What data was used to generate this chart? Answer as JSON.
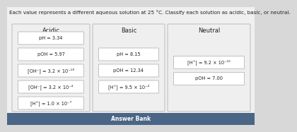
{
  "title": "Each value represents a different aqueous solution at 25 °C. Classify each solution as acidic, basic, or neutral.",
  "columns": [
    {
      "header": "Acidic",
      "items": [
        "pH = 3.34",
        "pOH = 5.97",
        "[OH⁻] = 3.2 × 10⁻¹³",
        "[OH⁻] = 3.2 × 10⁻⁴",
        "[H⁺] = 1.0 × 10⁻⁷"
      ]
    },
    {
      "header": "Basic",
      "items": [
        "pH = 8.15",
        "pOH = 12.34",
        "[H⁺] = 9.5 × 10⁻²"
      ]
    },
    {
      "header": "Neutral",
      "items": [
        "[H⁺] = 9.2 × 10⁻¹⁰",
        "pOH = 7.00"
      ]
    }
  ],
  "answer_bank_label": "Answer Bank",
  "bg_color": "#d8d8d8",
  "col_bg": "#efefef",
  "box_color": "#ffffff",
  "box_border": "#aaaaaa",
  "col_border": "#bbbbbb",
  "header_color": "#222222",
  "item_font_size": 4.8,
  "header_font_size": 6.0,
  "title_font_size": 5.2,
  "answer_bank_bg": "#4a6585",
  "answer_bank_text": "#ffffff",
  "answer_bank_font_size": 5.5
}
